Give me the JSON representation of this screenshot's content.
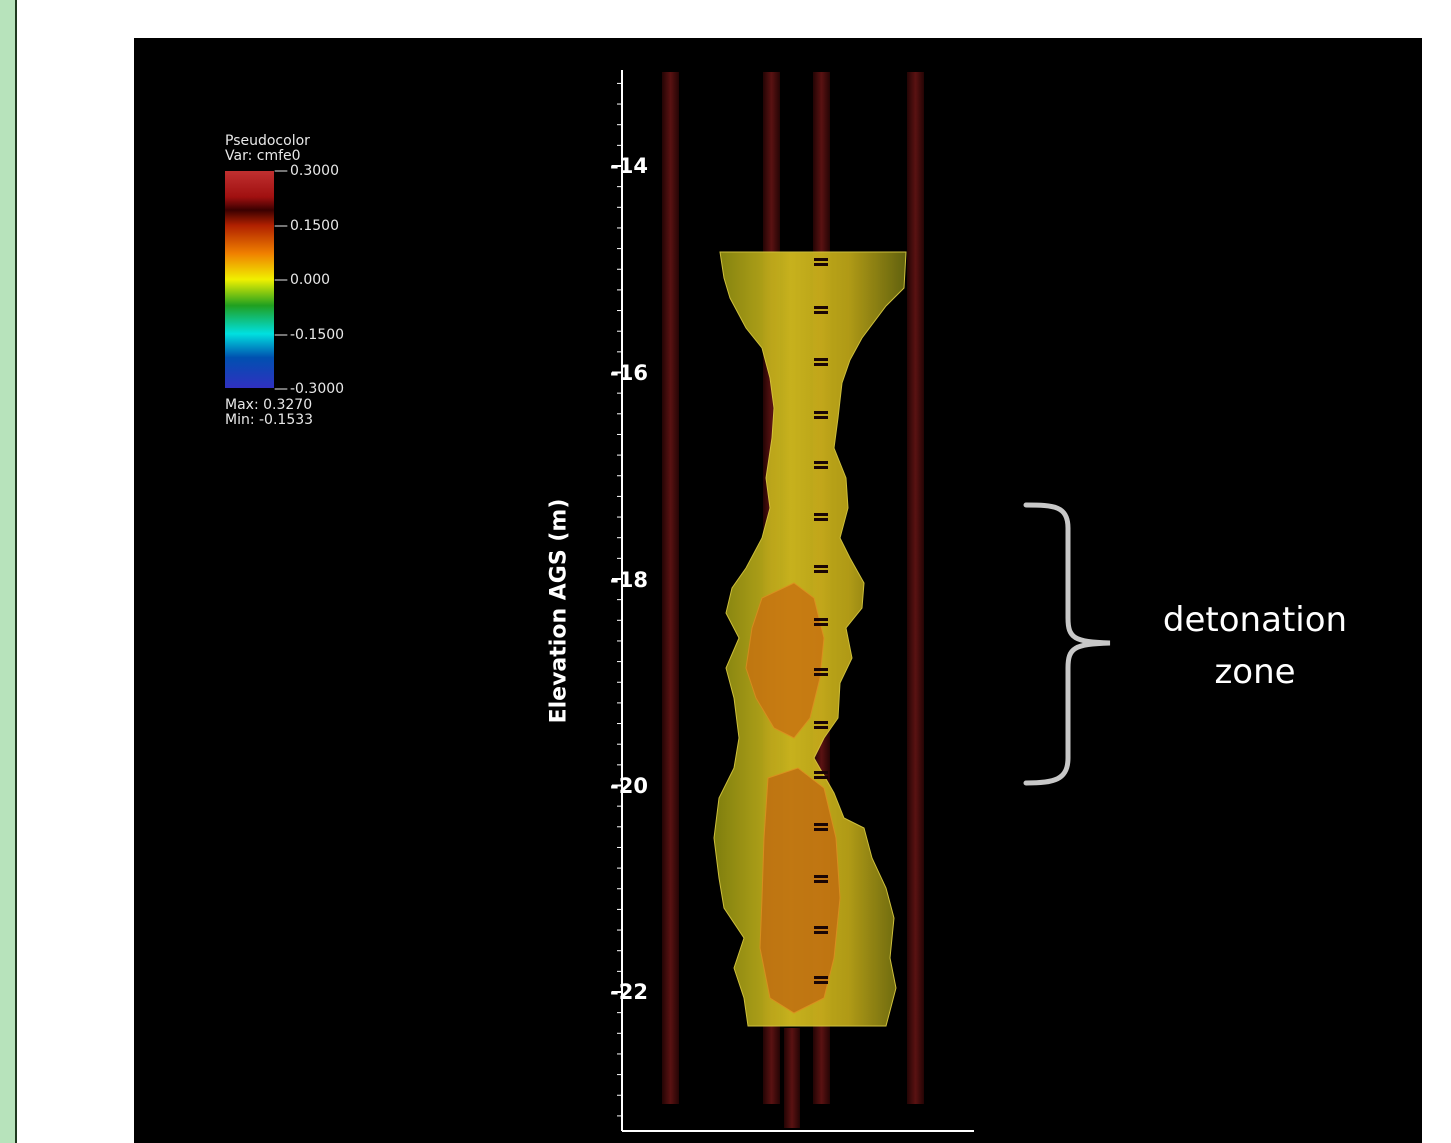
{
  "legend": {
    "title": "Pseudocolor",
    "var_line": "Var: cmfe0",
    "ticks": [
      "0.3000",
      "0.1500",
      "0.000",
      "-0.1500",
      "-0.3000"
    ],
    "max_line": "Max:  0.3270",
    "min_line": "Min: -0.1533"
  },
  "axis": {
    "ylabel": "Elevation AGS (m)",
    "ticks": [
      "-14",
      "-16",
      "-18",
      "-20",
      "-22"
    ]
  },
  "annotation": {
    "line1": "detonation",
    "line2": "zone"
  },
  "colors": {
    "background": "#000000",
    "plume": "#c8b800",
    "plume_core": "#c87000",
    "well": "#5a1010",
    "bracket": "#c8c8c8"
  }
}
